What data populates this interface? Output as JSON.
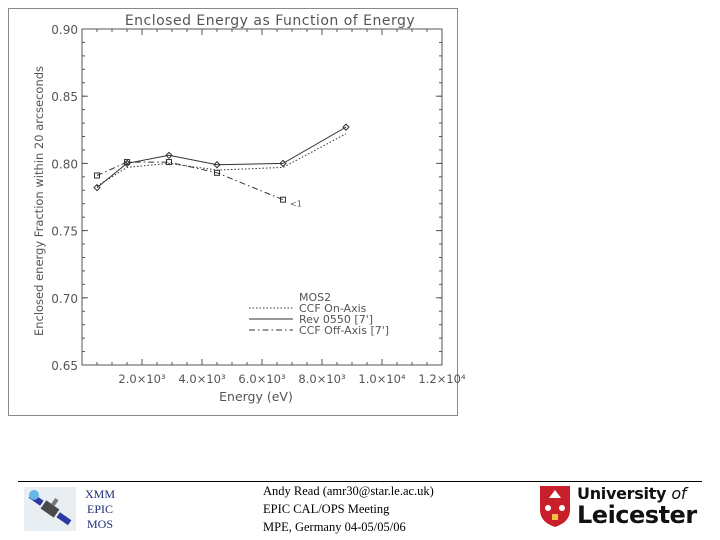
{
  "chart_data": {
    "type": "line",
    "title": "Enclosed Energy as Function of Energy",
    "xlabel": "Energy (eV)",
    "ylabel": "Enclosed energy Fraction within 20 arcseconds",
    "xlim": [
      0,
      12000
    ],
    "ylim": [
      0.65,
      0.9
    ],
    "x_tick_labels": [
      "2.0×10³",
      "4.0×10³",
      "6.0×10³",
      "8.0×10³",
      "1.0×10⁴",
      "1.2×10⁴"
    ],
    "x_tick_values": [
      2000,
      4000,
      6000,
      8000,
      10000,
      12000
    ],
    "y_tick_labels": [
      "0.65",
      "0.70",
      "0.75",
      "0.80",
      "0.85",
      "0.90"
    ],
    "y_tick_values": [
      0.65,
      0.7,
      0.75,
      0.8,
      0.85,
      0.9
    ],
    "legend_title": "MOS2",
    "legend_position": "bottom-right",
    "series": [
      {
        "name": "CCF On-Axis",
        "style": "dotted",
        "marker": "none",
        "x": [
          500,
          1500,
          2900,
          4500,
          6700,
          8800
        ],
        "y": [
          0.783,
          0.797,
          0.8,
          0.795,
          0.797,
          0.822
        ]
      },
      {
        "name": "Rev 0550 [7']",
        "style": "solid",
        "marker": "diamond",
        "x": [
          500,
          1500,
          2900,
          4500,
          6700,
          8800
        ],
        "y": [
          0.782,
          0.8,
          0.806,
          0.799,
          0.8,
          0.827
        ]
      },
      {
        "name": "CCF Off-Axis [7']",
        "style": "dashdot",
        "marker": "square",
        "x": [
          500,
          1500,
          2900,
          4500,
          6700
        ],
        "y": [
          0.791,
          0.801,
          0.801,
          0.793,
          0.773
        ]
      }
    ],
    "annotations": [
      {
        "text": "<1",
        "x": 6800,
        "y": 0.771
      }
    ]
  },
  "footer": {
    "mission_lines": [
      "XMM",
      "EPIC",
      "MOS"
    ],
    "author_lines": [
      "Andy Read (amr30@star.le.ac.uk)",
      "EPIC CAL/OPS Meeting",
      "MPE, Germany 04-05/05/06"
    ],
    "university_line1_prefix": "University ",
    "university_line1_of": "of",
    "university_line2": "Leicester",
    "logo_icons": [
      "satellite-icon",
      "university-crest-icon"
    ]
  },
  "colors": {
    "text_navy": "#1c2a78",
    "crest_red": "#c8202a"
  }
}
